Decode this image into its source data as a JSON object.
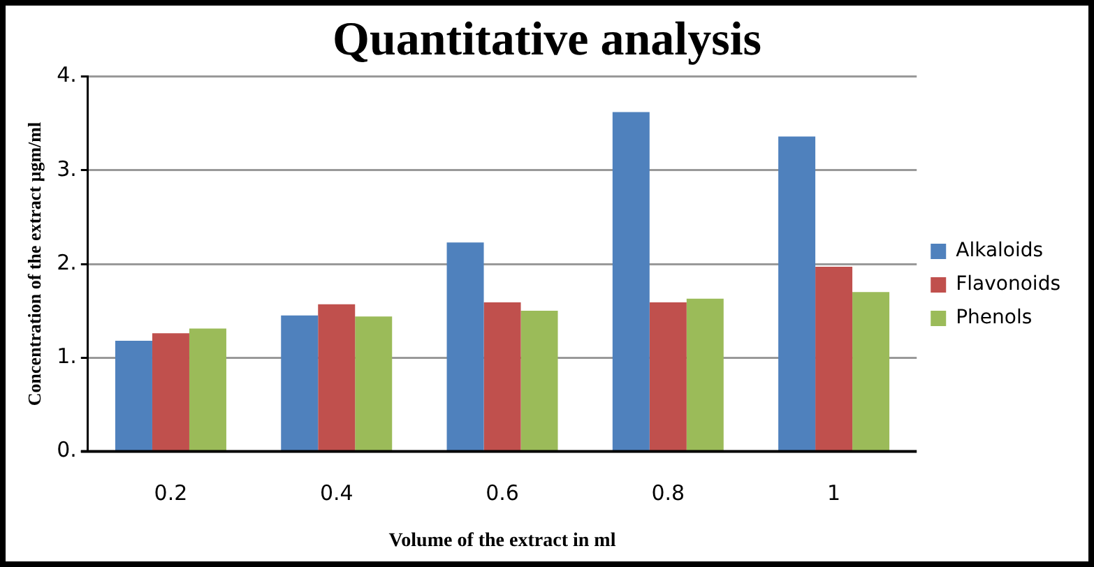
{
  "chart_data": {
    "type": "bar",
    "title": "Quantitative analysis",
    "xlabel": "Volume of the extract in ml",
    "ylabel": "Concentration of the extract µgm/ml",
    "categories": [
      "0.2",
      "0.4",
      "0.6",
      "0.8",
      "1"
    ],
    "series": [
      {
        "name": "Alkaloids",
        "color": "#4f81bd",
        "values": [
          1.18,
          1.45,
          2.23,
          3.62,
          3.36
        ]
      },
      {
        "name": "Flavonoids",
        "color": "#c0504d",
        "values": [
          1.26,
          1.57,
          1.59,
          1.59,
          1.97
        ]
      },
      {
        "name": "Phenols",
        "color": "#9bbb59",
        "values": [
          1.31,
          1.44,
          1.5,
          1.63,
          1.7
        ]
      }
    ],
    "ylim": [
      0,
      4
    ],
    "yticks": [
      {
        "value": 0,
        "label": "0."
      },
      {
        "value": 1,
        "label": "1."
      },
      {
        "value": 2,
        "label": "2."
      },
      {
        "value": 3,
        "label": "3."
      },
      {
        "value": 4,
        "label": "4."
      }
    ],
    "grid": "y",
    "legend": "right"
  }
}
